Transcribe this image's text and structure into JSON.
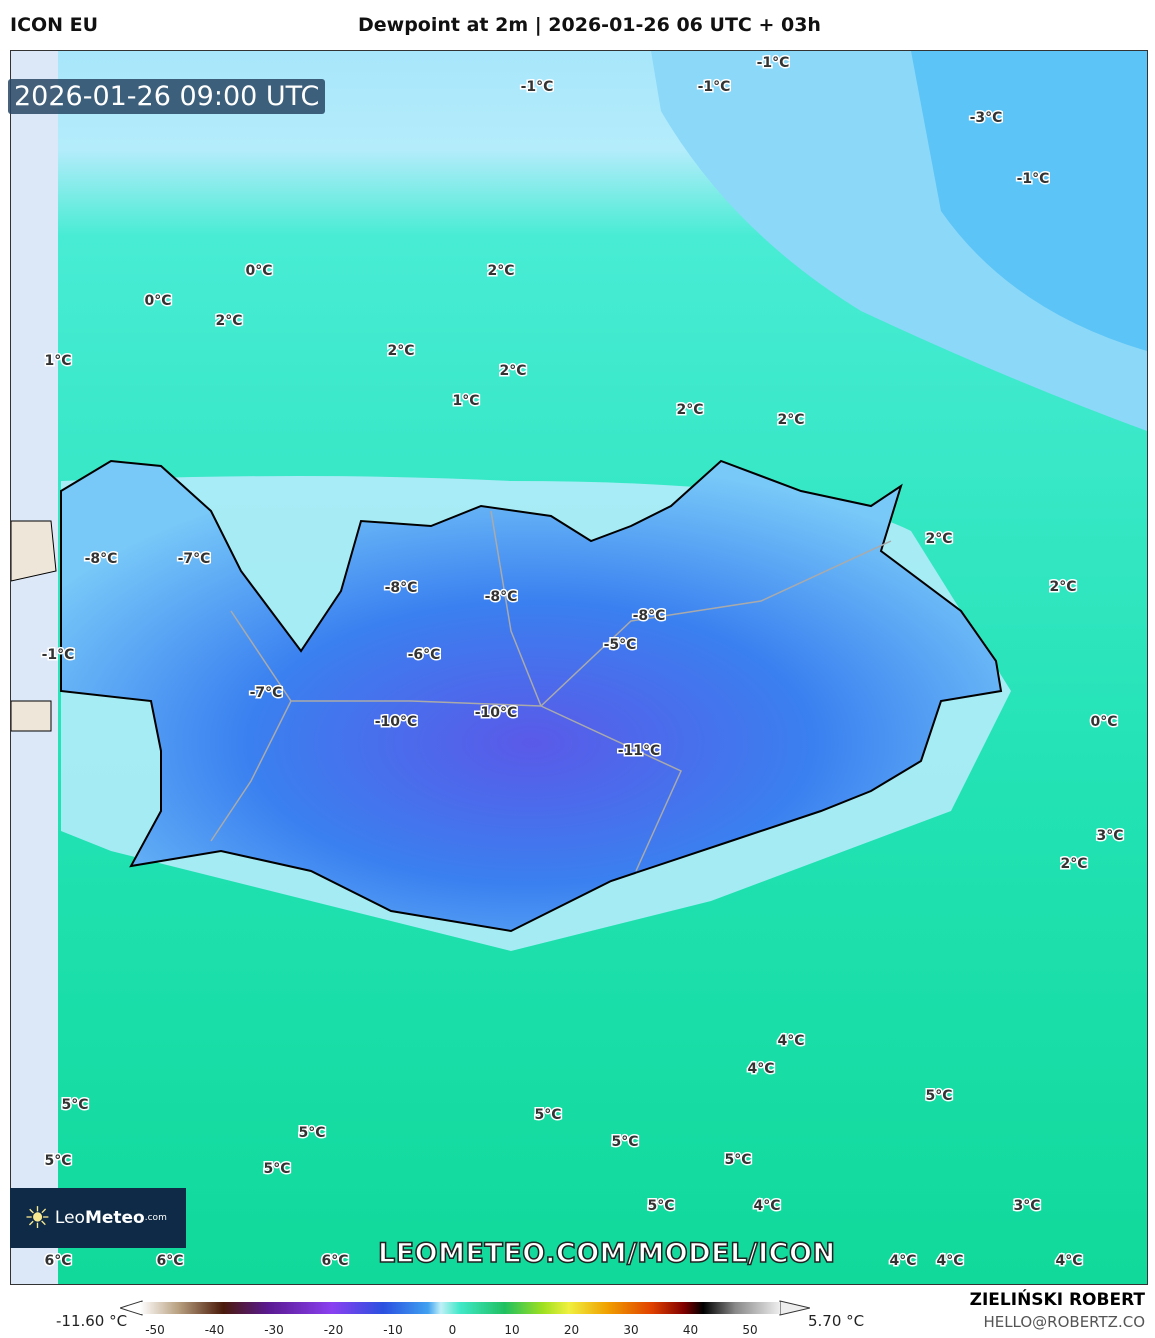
{
  "header": {
    "model": "ICON EU",
    "title": "Dewpoint at 2m | 2026-01-26 06 UTC + 03h"
  },
  "map": {
    "valid_time": "2026-01-26 09:00 UTC",
    "contour_labels": [
      "-1°C",
      "-1°C",
      "-1°C",
      "-3°C",
      "-1°C",
      "0°C",
      "0°C",
      "2°C",
      "2°C",
      "1°C",
      "2°C",
      "2°C",
      "1°C",
      "2°C",
      "2°C",
      "2°C",
      "2°C",
      "-8°C",
      "-7°C",
      "-8°C",
      "-8°C",
      "-8°C",
      "-5°C",
      "-6°C",
      "-1°C",
      "-7°C",
      "-10°C",
      "-10°C",
      "-11°C",
      "0°C",
      "3°C",
      "2°C",
      "4°C",
      "4°C",
      "5°C",
      "5°C",
      "5°C",
      "5°C",
      "5°C",
      "5°C",
      "5°C",
      "5°C",
      "5°C",
      "4°C",
      "3°C",
      "6°C",
      "6°C",
      "6°C",
      "4°C",
      "4°C",
      "4°C"
    ],
    "colors": {
      "land_cold": "#3a78f0",
      "land_coldest": "#6a50e8",
      "sea_north": "#a8e6fb",
      "sea_mid": "#3ee8d0",
      "sea_south": "#10d99a",
      "coast": "#000000"
    }
  },
  "branding": {
    "logo_text_light": "Leo",
    "logo_text_bold": "Meteo",
    "logo_suffix": ".com",
    "url": "LEOMETEO.COM/MODEL/ICON",
    "author": "ZIELIŃSKI ROBERT",
    "email": "HELLO@ROBERTZ.CO"
  },
  "legend": {
    "min_label": "-11.60 °C",
    "max_label": "5.70 °C",
    "ticks": [
      "-50",
      "-40",
      "-30",
      "-20",
      "-10",
      "0",
      "10",
      "20",
      "30",
      "40",
      "50"
    ]
  }
}
